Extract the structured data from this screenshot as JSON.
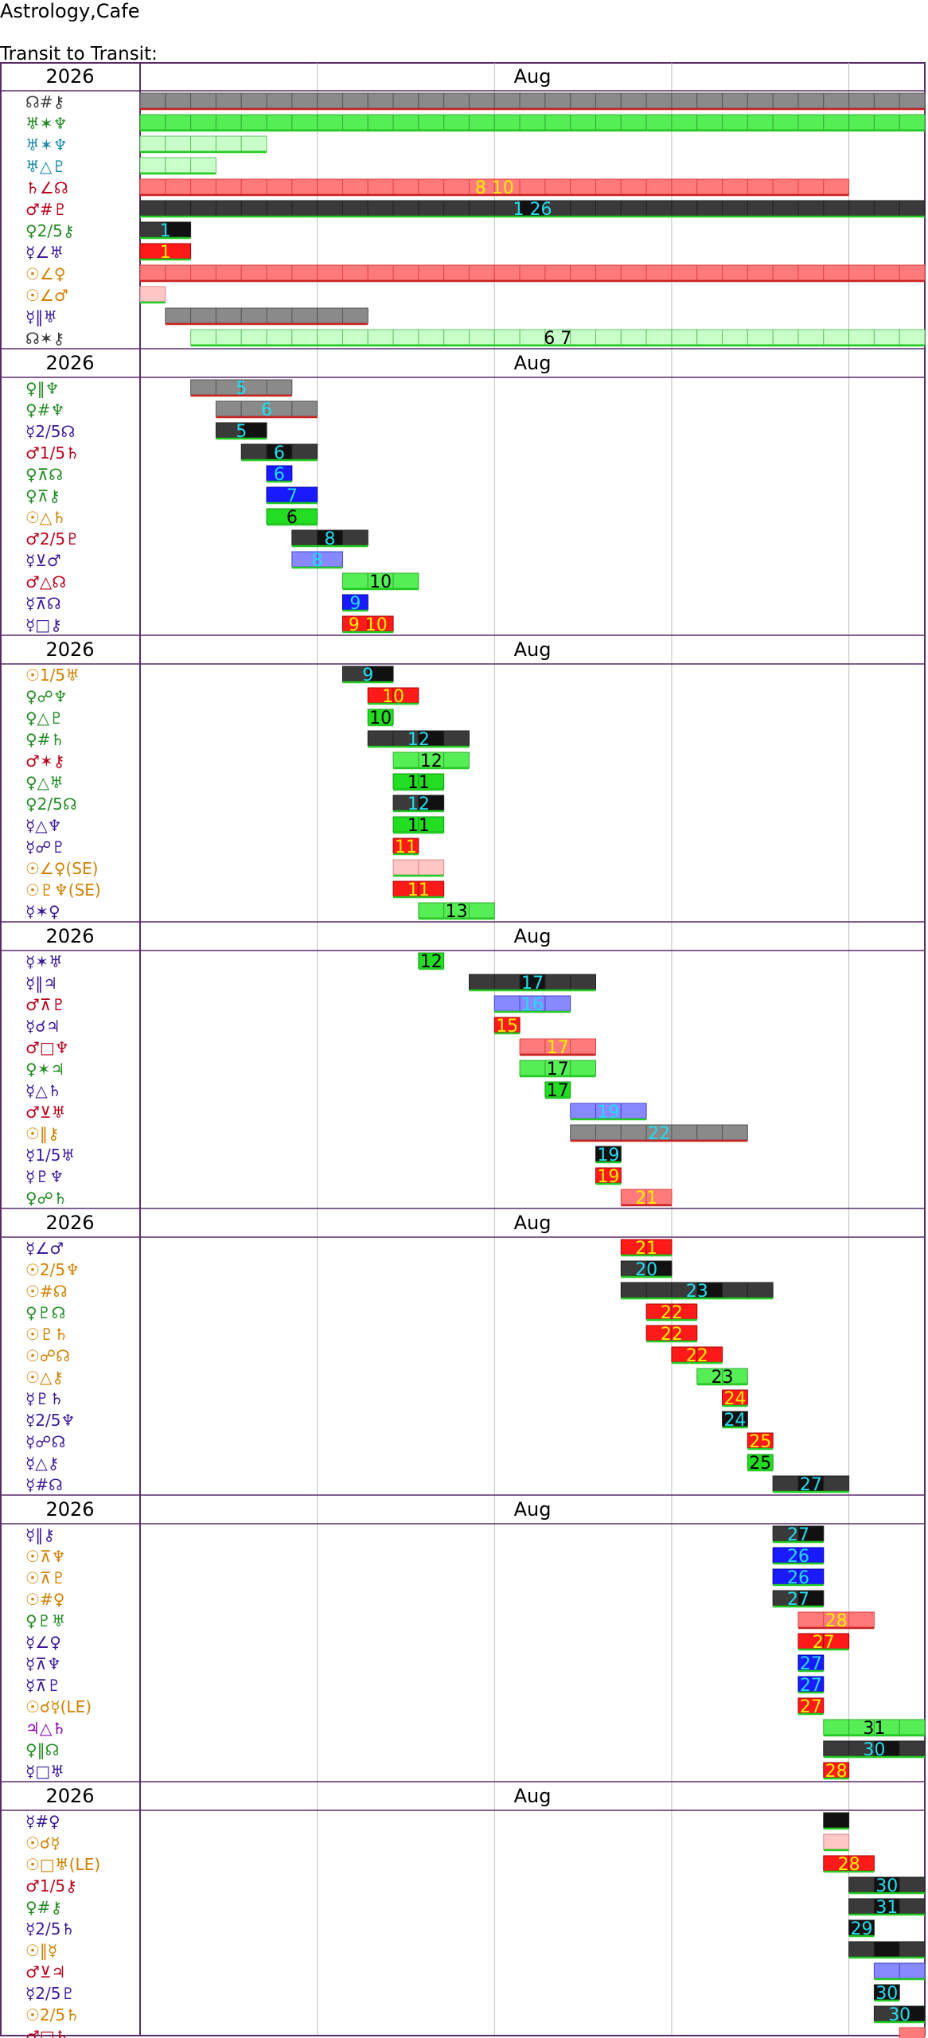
{
  "site_title": "Astrology,Cafe",
  "chart_title": "Transit to Transit:",
  "chart_data": {
    "type": "timeline",
    "year": "2026",
    "month": "Aug",
    "x_axis": "day of month (Aug 2026)",
    "x_range": [
      26,
      31
    ],
    "colors": {
      "grey_fill": "#8a8a8a",
      "grey_light": "#d0d0d0",
      "grey_dark": "#3a3a3a",
      "black": "#111111",
      "green_fill": "#55ee55",
      "green_light": "#c8ffc8",
      "green_strong": "#22dd22",
      "red_fill": "#ff7b7b",
      "red_light": "#ffc6c6",
      "red_strong": "#ff1a1a",
      "blue_fill": "#8888ff",
      "blue_light": "#ccccff",
      "blue_strong": "#1a1aff",
      "number_cyan": "#22ddee",
      "number_yellow": "#ffee00",
      "number_black": "#000000",
      "underline_green": "#22cc22",
      "underline_red": "#cc2222",
      "frame": "#5a2a6a",
      "grid": "#bdbdbd"
    },
    "rows": [
      {
        "label": "☊#⚷",
        "color": "#3a3a3a",
        "start": 0,
        "end": 31,
        "style": "grey",
        "number": ""
      },
      {
        "label": "♅✶♆",
        "color": "#228b22",
        "start": 0,
        "end": 31,
        "style": "green",
        "number": ""
      },
      {
        "label": "♅✶♆",
        "color": "#1a8aa8",
        "start": 0,
        "end": 5,
        "style": "green-light",
        "number": ""
      },
      {
        "label": "♅△♇",
        "color": "#1a8aa8",
        "start": 0,
        "end": 3,
        "style": "green-light",
        "number": ""
      },
      {
        "label": "♄∠☊",
        "color": "#b8001a",
        "start": 0,
        "end": 28,
        "style": "red",
        "number": "8 10"
      },
      {
        "label": "♂#♇",
        "color": "#b8001a",
        "start": 0,
        "end": 31,
        "style": "black",
        "number": "1 26"
      },
      {
        "label": "♀2/5⚷",
        "color": "#228b22",
        "start": 0,
        "end": 2,
        "style": "black",
        "number": "1"
      },
      {
        "label": "☿∠♅",
        "color": "#3a1a9a",
        "start": 0,
        "end": 2,
        "style": "red-strong",
        "number": "1"
      },
      {
        "label": "☉∠♀",
        "color": "#d08000",
        "start": 0,
        "end": 31,
        "style": "red",
        "number": ""
      },
      {
        "label": "☉∠♂",
        "color": "#d08000",
        "start": 0,
        "end": 1,
        "style": "red-light",
        "number": ""
      },
      {
        "label": "☿‖♅",
        "color": "#3a1a9a",
        "start": 1,
        "end": 9,
        "style": "grey",
        "number": ""
      },
      {
        "label": "☊✶⚷",
        "color": "#3a3a3a",
        "start": 2,
        "end": 31,
        "style": "green-light",
        "number": "6 7"
      },
      {
        "label": "♀‖♆",
        "color": "#228b22",
        "start": 2,
        "end": 6,
        "style": "grey",
        "number": "5"
      },
      {
        "label": "♀#♆",
        "color": "#228b22",
        "start": 3,
        "end": 7,
        "style": "grey",
        "number": "6"
      },
      {
        "label": "☿2/5☊",
        "color": "#3a1a9a",
        "start": 3,
        "end": 5,
        "style": "black",
        "number": "5"
      },
      {
        "label": "♂1/5♄",
        "color": "#b8001a",
        "start": 4,
        "end": 7,
        "style": "black",
        "number": "6"
      },
      {
        "label": "♀⊼☊",
        "color": "#228b22",
        "start": 5,
        "end": 6,
        "style": "blue-strong",
        "number": "6"
      },
      {
        "label": "♀⊼⚷",
        "color": "#228b22",
        "start": 5,
        "end": 7,
        "style": "blue-strong",
        "number": "7"
      },
      {
        "label": "☉△♄",
        "color": "#d08000",
        "start": 5,
        "end": 7,
        "style": "green-strong",
        "number": "6"
      },
      {
        "label": "♂2/5♇",
        "color": "#b8001a",
        "start": 6,
        "end": 9,
        "style": "black",
        "number": "8"
      },
      {
        "label": "☿⊻♂",
        "color": "#3a1a9a",
        "start": 6,
        "end": 8,
        "style": "blue",
        "number": "8"
      },
      {
        "label": "♂△☊",
        "color": "#b8001a",
        "start": 8,
        "end": 11,
        "style": "green",
        "number": "10"
      },
      {
        "label": "☿⊼☊",
        "color": "#3a1a9a",
        "start": 8,
        "end": 9,
        "style": "blue-strong",
        "number": "9"
      },
      {
        "label": "☿□⚷",
        "color": "#3a1a9a",
        "start": 8,
        "end": 10,
        "style": "red-strong",
        "number": "9 10"
      },
      {
        "label": "☉1/5♅",
        "color": "#d08000",
        "start": 8,
        "end": 10,
        "style": "black",
        "number": "9"
      },
      {
        "label": "♀☍♆",
        "color": "#228b22",
        "start": 9,
        "end": 11,
        "style": "red-strong",
        "number": "10"
      },
      {
        "label": "♀△♇",
        "color": "#228b22",
        "start": 9,
        "end": 10,
        "style": "green-strong",
        "number": "10"
      },
      {
        "label": "♀#♄",
        "color": "#228b22",
        "start": 9,
        "end": 13,
        "style": "black",
        "number": "12"
      },
      {
        "label": "♂✶⚷",
        "color": "#b8001a",
        "start": 10,
        "end": 13,
        "style": "green",
        "number": "12"
      },
      {
        "label": "♀△♅",
        "color": "#228b22",
        "start": 10,
        "end": 12,
        "style": "green-strong",
        "number": "11"
      },
      {
        "label": "♀2/5☊",
        "color": "#228b22",
        "start": 10,
        "end": 12,
        "style": "black",
        "number": "12"
      },
      {
        "label": "☿△♆",
        "color": "#3a1a9a",
        "start": 10,
        "end": 12,
        "style": "green-strong",
        "number": "11"
      },
      {
        "label": "☿☍♇",
        "color": "#3a1a9a",
        "start": 10,
        "end": 11,
        "style": "red-strong",
        "number": "11"
      },
      {
        "label": "☉∠♀(SE)",
        "color": "#d08000",
        "start": 10,
        "end": 12,
        "style": "red-light",
        "number": ""
      },
      {
        "label": "☉♇♆(SE)",
        "color": "#d08000",
        "start": 10,
        "end": 12,
        "style": "red-strong",
        "number": "11"
      },
      {
        "label": "☿✶♀",
        "color": "#3a1a9a",
        "start": 11,
        "end": 14,
        "style": "green",
        "number": "13"
      },
      {
        "label": "☿✶♅",
        "color": "#3a1a9a",
        "start": 11,
        "end": 12,
        "style": "green-strong",
        "number": "12"
      },
      {
        "label": "☿‖♃",
        "color": "#3a1a9a",
        "start": 13,
        "end": 18,
        "style": "black",
        "number": "17"
      },
      {
        "label": "♂⊼♇",
        "color": "#b8001a",
        "start": 14,
        "end": 17,
        "style": "blue",
        "number": "16"
      },
      {
        "label": "☿☌♃",
        "color": "#3a1a9a",
        "start": 14,
        "end": 15,
        "style": "red-strong",
        "number": "15"
      },
      {
        "label": "♂□♆",
        "color": "#b8001a",
        "start": 15,
        "end": 18,
        "style": "red",
        "number": "17"
      },
      {
        "label": "♀✶♃",
        "color": "#228b22",
        "start": 15,
        "end": 18,
        "style": "green",
        "number": "17"
      },
      {
        "label": "☿△♄",
        "color": "#3a1a9a",
        "start": 16,
        "end": 17,
        "style": "green-strong",
        "number": "17"
      },
      {
        "label": "♂⊻♅",
        "color": "#b8001a",
        "start": 17,
        "end": 20,
        "style": "blue",
        "number": "19"
      },
      {
        "label": "☉‖⚷",
        "color": "#d08000",
        "start": 17,
        "end": 24,
        "style": "grey",
        "number": "22"
      },
      {
        "label": "☿1/5♅",
        "color": "#3a1a9a",
        "start": 18,
        "end": 19,
        "style": "black",
        "number": "19"
      },
      {
        "label": "☿♇♆",
        "color": "#3a1a9a",
        "start": 18,
        "end": 19,
        "style": "red-strong",
        "number": "19"
      },
      {
        "label": "♀☍♄",
        "color": "#228b22",
        "start": 19,
        "end": 21,
        "style": "red",
        "number": "21"
      },
      {
        "label": "☿∠♂",
        "color": "#3a1a9a",
        "start": 19,
        "end": 21,
        "style": "red-strong",
        "number": "21"
      },
      {
        "label": "☉2/5♆",
        "color": "#d08000",
        "start": 19,
        "end": 21,
        "style": "black",
        "number": "20"
      },
      {
        "label": "☉#☊",
        "color": "#d08000",
        "start": 19,
        "end": 25,
        "style": "black",
        "number": "23"
      },
      {
        "label": "♀♇☊",
        "color": "#228b22",
        "start": 20,
        "end": 22,
        "style": "red-strong",
        "number": "22"
      },
      {
        "label": "☉♇♄",
        "color": "#d08000",
        "start": 20,
        "end": 22,
        "style": "red-strong",
        "number": "22"
      },
      {
        "label": "☉☍☊",
        "color": "#d08000",
        "start": 21,
        "end": 23,
        "style": "red-strong",
        "number": "22"
      },
      {
        "label": "☉△⚷",
        "color": "#d08000",
        "start": 22,
        "end": 24,
        "style": "green",
        "number": "23"
      },
      {
        "label": "☿♇♄",
        "color": "#3a1a9a",
        "start": 23,
        "end": 24,
        "style": "red-strong",
        "number": "24"
      },
      {
        "label": "☿2/5♆",
        "color": "#3a1a9a",
        "start": 23,
        "end": 24,
        "style": "black",
        "number": "24"
      },
      {
        "label": "☿☍☊",
        "color": "#3a1a9a",
        "start": 24,
        "end": 25,
        "style": "red-strong",
        "number": "25"
      },
      {
        "label": "☿△⚷",
        "color": "#3a1a9a",
        "start": 24,
        "end": 25,
        "style": "green-strong",
        "number": "25"
      },
      {
        "label": "☿#☊",
        "color": "#3a1a9a",
        "start": 25,
        "end": 28,
        "style": "black",
        "number": "27"
      },
      {
        "label": "☿‖⚷",
        "color": "#3a1a9a",
        "start": 25,
        "end": 27,
        "style": "black",
        "number": "27"
      },
      {
        "label": "☉⊼♆",
        "color": "#d08000",
        "start": 25,
        "end": 27,
        "style": "blue-strong",
        "number": "26"
      },
      {
        "label": "☉⊼♇",
        "color": "#d08000",
        "start": 25,
        "end": 27,
        "style": "blue-strong",
        "number": "26"
      },
      {
        "label": "☉#♀",
        "color": "#d08000",
        "start": 25,
        "end": 27,
        "style": "black",
        "number": "27"
      },
      {
        "label": "♀♇♅",
        "color": "#228b22",
        "start": 26,
        "end": 29,
        "style": "red",
        "number": "28"
      },
      {
        "label": "☿∠♀",
        "color": "#3a1a9a",
        "start": 26,
        "end": 28,
        "style": "red-strong",
        "number": "27"
      },
      {
        "label": "☿⊼♆",
        "color": "#3a1a9a",
        "start": 26,
        "end": 27,
        "style": "blue-strong",
        "number": "27"
      },
      {
        "label": "☿⊼♇",
        "color": "#3a1a9a",
        "start": 26,
        "end": 27,
        "style": "blue-strong",
        "number": "27"
      },
      {
        "label": "☉☌☿(LE)",
        "color": "#d08000",
        "start": 26,
        "end": 27,
        "style": "red-strong",
        "number": "27"
      },
      {
        "label": "♃△♄",
        "color": "#8b00b0",
        "start": 27,
        "end": 31,
        "style": "green",
        "number": "31"
      },
      {
        "label": "♀‖☊",
        "color": "#228b22",
        "start": 27,
        "end": 31,
        "style": "black",
        "number": "30"
      },
      {
        "label": "☿□♅",
        "color": "#3a1a9a",
        "start": 27,
        "end": 28,
        "style": "red-strong",
        "number": "28"
      },
      {
        "label": "☿#♀",
        "color": "#3a1a9a",
        "start": 27,
        "end": 28,
        "style": "black",
        "number": ""
      },
      {
        "label": "☉☌☿",
        "color": "#d08000",
        "start": 27,
        "end": 28,
        "style": "red-light",
        "number": ""
      },
      {
        "label": "☉□♅(LE)",
        "color": "#d08000",
        "start": 27,
        "end": 29,
        "style": "red-strong",
        "number": "28"
      },
      {
        "label": "♂1/5⚷",
        "color": "#b8001a",
        "start": 28,
        "end": 31,
        "style": "black",
        "number": "30"
      },
      {
        "label": "♀#⚷",
        "color": "#228b22",
        "start": 28,
        "end": 31,
        "style": "black",
        "number": "31"
      },
      {
        "label": "☿2/5♄",
        "color": "#3a1a9a",
        "start": 28,
        "end": 29,
        "style": "black",
        "number": "29"
      },
      {
        "label": "☉‖☿",
        "color": "#d08000",
        "start": 28,
        "end": 31,
        "style": "black",
        "number": ""
      },
      {
        "label": "♂⊻♃",
        "color": "#b8001a",
        "start": 29,
        "end": 31,
        "style": "blue",
        "number": ""
      },
      {
        "label": "☿2/5♇",
        "color": "#3a1a9a",
        "start": 29,
        "end": 30,
        "style": "black",
        "number": "30"
      },
      {
        "label": "☉2/5♄",
        "color": "#d08000",
        "start": 29,
        "end": 31,
        "style": "black",
        "number": "30"
      },
      {
        "label": "♂□♄",
        "color": "#b8001a",
        "start": 30,
        "end": 31,
        "style": "red",
        "number": ""
      }
    ]
  }
}
